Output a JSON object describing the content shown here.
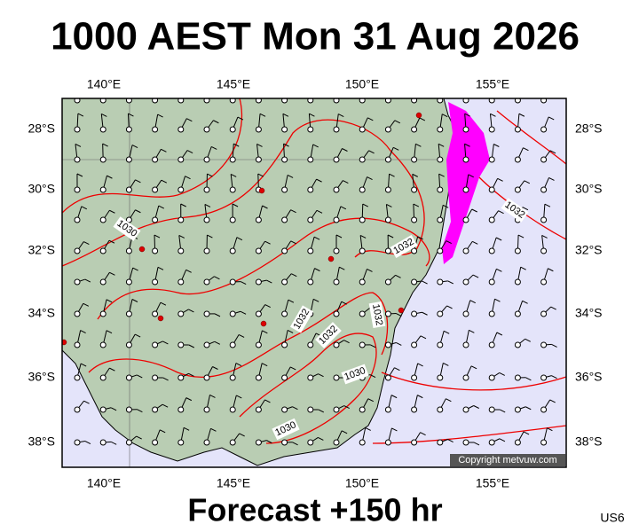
{
  "header": {
    "title": "1000 AEST Mon 31 Aug 2026"
  },
  "map": {
    "lon_labels_top": [
      "140°E",
      "145°E",
      "150°E",
      "155°E"
    ],
    "lon_labels_bottom": [
      "140°E",
      "145°E",
      "150°E",
      "155°E"
    ],
    "lat_labels_left": [
      "28°S",
      "30°S",
      "32°S",
      "34°S",
      "36°S",
      "38°S"
    ],
    "lat_labels_right": [
      "28°S",
      "30°S",
      "32°S",
      "34°S",
      "36°S",
      "38°S"
    ],
    "isobar_labels": [
      "1030",
      "1032",
      "1032",
      "1032",
      "1032",
      "1032",
      "1030",
      "1030"
    ],
    "copyright": "Copyright metvuw.com"
  },
  "footer": {
    "forecast": "Forecast +150 hr",
    "code": "US6"
  }
}
